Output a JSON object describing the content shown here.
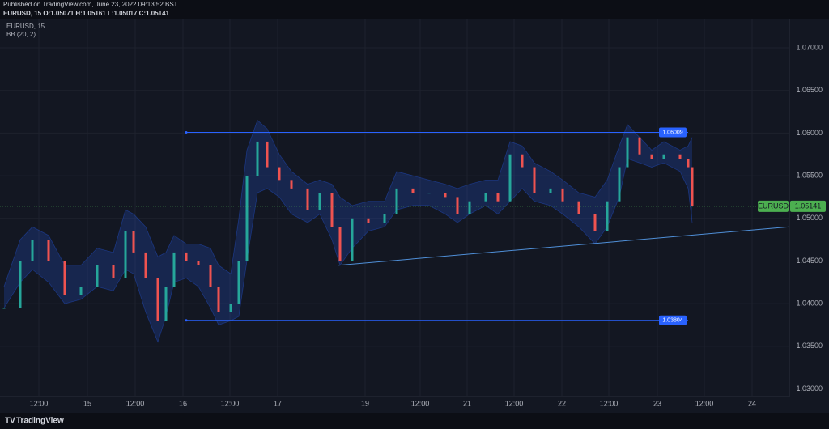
{
  "header": {
    "published": "Published on TradingView.com, June 23, 2022 09:13:52 BST",
    "ohlc": "EURUSD, 15  O:1.05071  H:1.05161  L:1.05017  C:1.05141"
  },
  "footer": {
    "brand": "TradingView"
  },
  "chart_data": {
    "type": "candlestick",
    "symbol": "EURUSD, 15",
    "indicator": "BB (20, 2)",
    "x": [
      3.4,
      7.4,
      10.4,
      14.4,
      18.4,
      22.4,
      26.4,
      30.4,
      33.4,
      35.4,
      38.4,
      41.4,
      43.4,
      45.4,
      48.4,
      51.4,
      54.4,
      56.4,
      59.4,
      61.4,
      63.4,
      66,
      68.4,
      71.4,
      74.4,
      78.4,
      81.4,
      84.4,
      86.4,
      89.4,
      93.4,
      97.4,
      100.4,
      104.4,
      108.4,
      112.4,
      115.4,
      118.4,
      122.4,
      125.4,
      128.4,
      131.4,
      134.4,
      138.4,
      141.4,
      145.4,
      149.4,
      152.4,
      155.4,
      157.4,
      160.4,
      163.4,
      166.4,
      170.4,
      172.4,
      173.4
    ],
    "series": [
      {
        "name": "EURUSD",
        "up_color": "#26a69a",
        "down_color": "#ef5350",
        "values": [
          1.0395,
          1.045,
          1.0475,
          1.045,
          1.041,
          1.042,
          1.0445,
          1.043,
          1.0485,
          1.046,
          1.043,
          1.038,
          1.042,
          1.046,
          1.045,
          1.0445,
          1.042,
          1.039,
          1.04,
          1.045,
          1.055,
          1.059,
          1.056,
          1.0545,
          1.0535,
          1.051,
          1.053,
          1.049,
          1.045,
          1.05,
          1.0495,
          1.0505,
          1.0535,
          1.053,
          1.053,
          1.0525,
          1.0505,
          1.052,
          1.053,
          1.052,
          1.0575,
          1.056,
          1.053,
          1.0535,
          1.052,
          1.0505,
          1.0485,
          1.052,
          1.056,
          1.0595,
          1.0575,
          1.057,
          1.0575,
          1.057,
          1.056,
          1.0514
        ]
      },
      {
        "name": "BB upper",
        "color": "#2962ff",
        "values": [
          1.042,
          1.0475,
          1.049,
          1.048,
          1.0445,
          1.0445,
          1.0465,
          1.046,
          1.051,
          1.0505,
          1.049,
          1.0455,
          1.046,
          1.048,
          1.047,
          1.047,
          1.0465,
          1.0445,
          1.0435,
          1.05,
          1.058,
          1.0615,
          1.0605,
          1.0575,
          1.0555,
          1.054,
          1.0545,
          1.054,
          1.0525,
          1.0515,
          1.052,
          1.052,
          1.0555,
          1.055,
          1.0545,
          1.054,
          1.0535,
          1.054,
          1.0545,
          1.0545,
          1.059,
          1.0585,
          1.0565,
          1.0555,
          1.0545,
          1.053,
          1.0525,
          1.0545,
          1.0585,
          1.061,
          1.0595,
          1.058,
          1.059,
          1.058,
          1.0585,
          1.0595
        ]
      },
      {
        "name": "BB lower",
        "color": "#2962ff",
        "values": [
          1.0395,
          1.0425,
          1.044,
          1.0425,
          1.04,
          1.0405,
          1.042,
          1.0415,
          1.044,
          1.0435,
          1.039,
          1.0355,
          1.0385,
          1.0425,
          1.043,
          1.042,
          1.0395,
          1.0375,
          1.038,
          1.0385,
          1.045,
          1.053,
          1.0535,
          1.0525,
          1.0505,
          1.0495,
          1.0505,
          1.0475,
          1.0445,
          1.0465,
          1.0485,
          1.049,
          1.051,
          1.0515,
          1.0515,
          1.0505,
          1.0495,
          1.0505,
          1.0515,
          1.0505,
          1.052,
          1.0535,
          1.052,
          1.0515,
          1.0505,
          1.049,
          1.047,
          1.049,
          1.0525,
          1.057,
          1.0565,
          1.056,
          1.0565,
          1.0555,
          1.0535,
          1.0495
        ]
      }
    ],
    "levels": [
      {
        "value": 1.06009,
        "x": [
          48.4,
          172.4
        ],
        "color": "#2962ff"
      },
      {
        "value": 1.03804,
        "x": [
          48.4,
          172.4
        ],
        "color": "#2962ff"
      }
    ],
    "trendline": {
      "x": [
        86,
        197.4
      ],
      "y": [
        1.0445,
        1.049
      ],
      "color": "#4f8fd8"
    },
    "last_price": {
      "label": "EURUSD",
      "value": 1.05141,
      "color": "#4caf50"
    },
    "xlim": [
      2.4,
      197.4
    ],
    "xticks": [
      {
        "value": 12,
        "label": "12:00"
      },
      {
        "value": 24,
        "label": "15"
      },
      {
        "value": 35.8,
        "label": "12:00"
      },
      {
        "value": 47.6,
        "label": "16"
      },
      {
        "value": 59.2,
        "label": "12:00"
      },
      {
        "value": 71,
        "label": "17"
      },
      {
        "value": 92.6,
        "label": "19"
      },
      {
        "value": 106.2,
        "label": "12:00"
      },
      {
        "value": 117.8,
        "label": "21"
      },
      {
        "value": 129.4,
        "label": "12:00"
      },
      {
        "value": 141.2,
        "label": "22"
      },
      {
        "value": 152.8,
        "label": "12:00"
      },
      {
        "value": 164.8,
        "label": "23"
      },
      {
        "value": 176.4,
        "label": "12:00"
      },
      {
        "value": 188.2,
        "label": "24"
      }
    ],
    "ylim": [
      1.0291,
      1.0756
    ],
    "yticks": [
      {
        "value": 1.03,
        "label": "1.03000"
      },
      {
        "value": 1.035,
        "label": "1.03500"
      },
      {
        "value": 1.04,
        "label": "1.04000"
      },
      {
        "value": 1.045,
        "label": "1.04500"
      },
      {
        "value": 1.05,
        "label": "1.05000"
      },
      {
        "value": 1.055,
        "label": "1.05500"
      },
      {
        "value": 1.06,
        "label": "1.06000"
      },
      {
        "value": 1.065,
        "label": "1.06500"
      },
      {
        "value": 1.07,
        "label": "1.07000"
      }
    ],
    "grid": true
  }
}
